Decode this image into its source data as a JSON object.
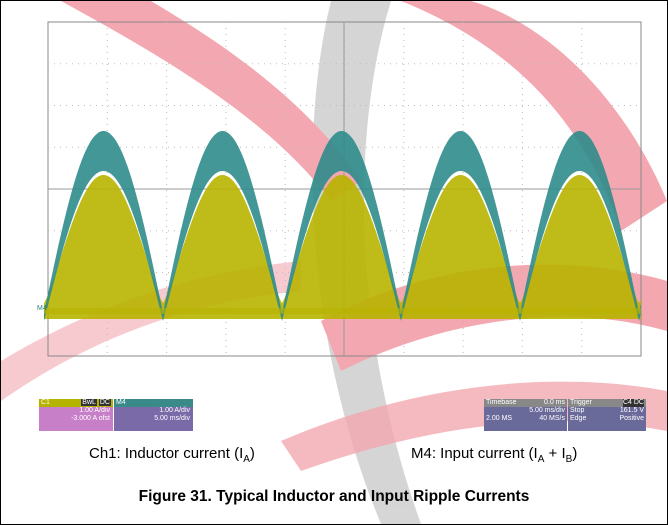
{
  "scope": {
    "trace_marker": "M4",
    "c1": {
      "label": "C1",
      "badges": [
        "BwL",
        "DC"
      ],
      "scale": "1.00 A/div",
      "offset": "-3.000 A ofst"
    },
    "m4": {
      "label": "M4",
      "scale": "1.00 A/div",
      "time": "5.00 ms/div"
    },
    "timebase": {
      "label": "Timebase",
      "delay": "0.0 ms",
      "div": "5.00 ms/div",
      "samples": "2.00 MS",
      "rate": "40 MS/s"
    },
    "trigger": {
      "label": "Trigger",
      "badge": "C4 DC",
      "mode": "Stop",
      "level": "161.5 V",
      "type": "Edge",
      "slope": "Positive"
    }
  },
  "captions": [
    {
      "text": "Ch1: Inductor current (I",
      "sub": "A",
      "end": ")"
    },
    {
      "text": "M4: Input current (I",
      "sub": "A",
      "mid": " + I",
      "sub2": "B",
      "end": ")"
    }
  ],
  "figure_title": "Figure 31. Typical Inductor and Input Ripple Currents"
}
